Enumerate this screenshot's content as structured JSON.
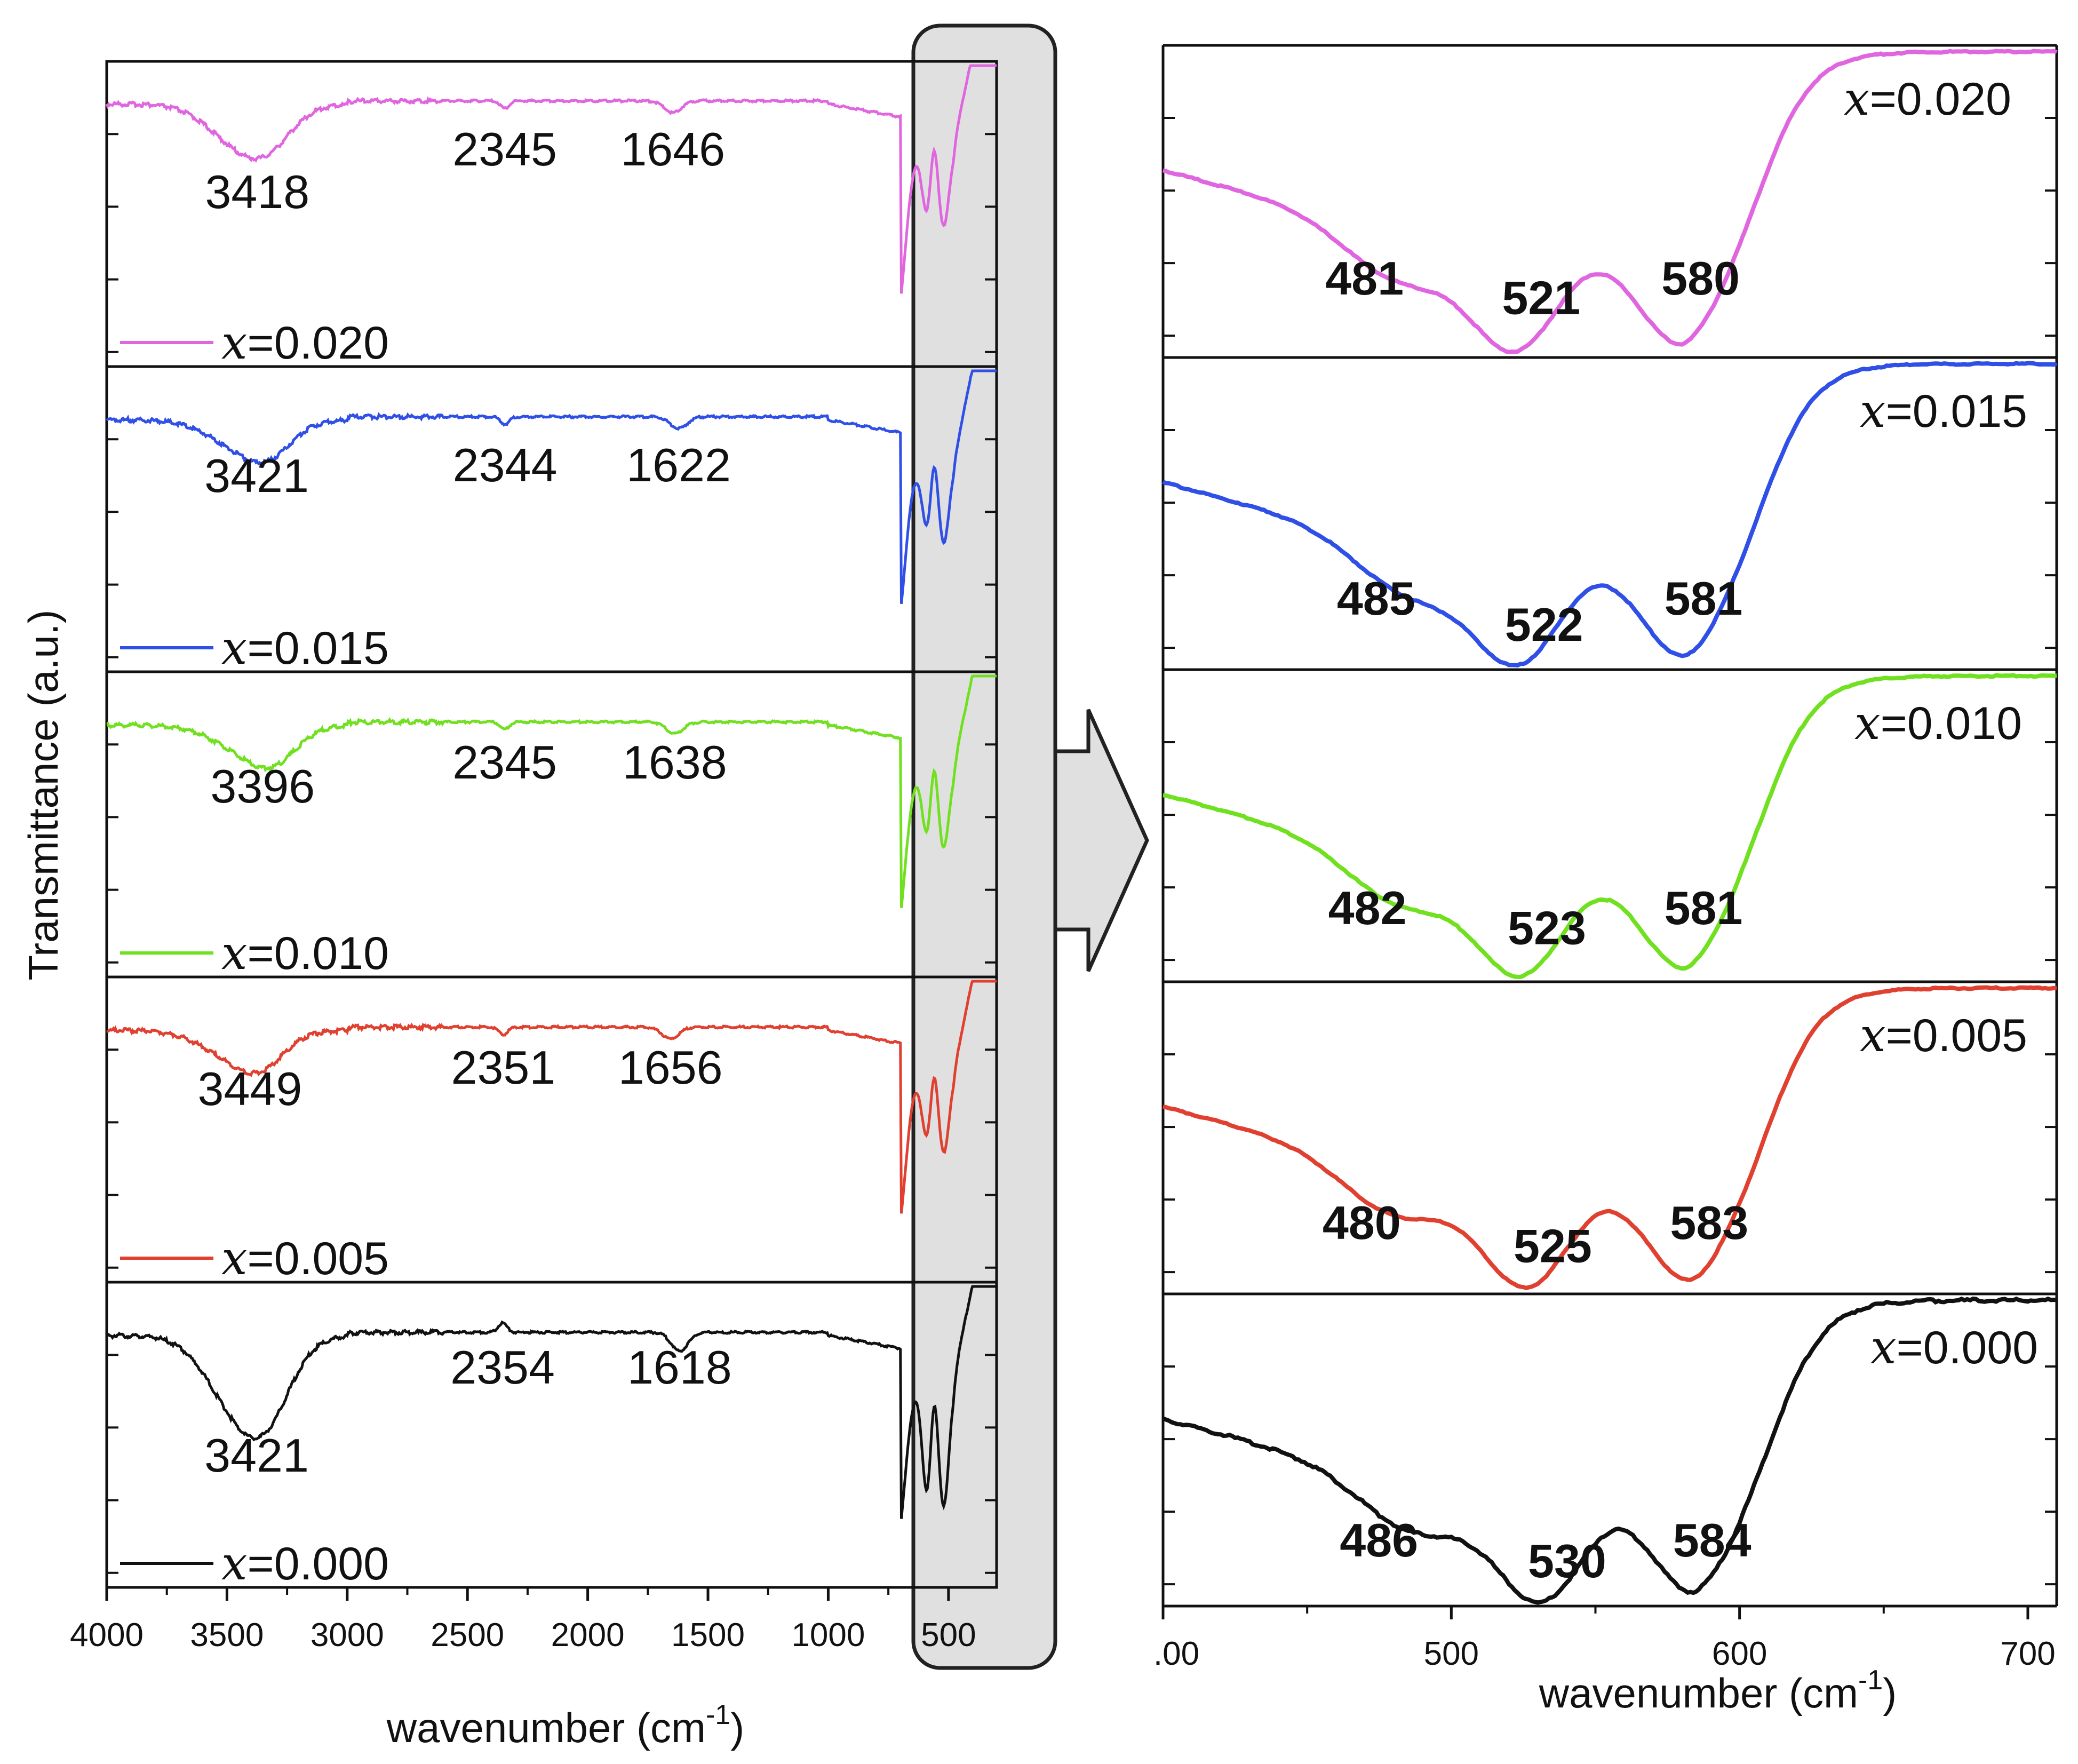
{
  "chart_data": [
    {
      "type": "line",
      "panel": "full spectrum",
      "xlabel": "wavenumber (cm",
      "xlabel_sup": "-1",
      "xlabel_close": ")",
      "ylabel": "Transmittance (a.u.)",
      "xlim": [
        4000,
        300
      ],
      "xticks": [
        "4000",
        "3500",
        "3000",
        "2500",
        "2000",
        "1500",
        "1000",
        "500"
      ],
      "highlight_region": [
        700,
        300
      ],
      "series": [
        {
          "name": "x=0.020",
          "legend_var": "x",
          "legend_value": "=0.020",
          "color": "#e066e0",
          "peaks": [
            {
              "x": 3418,
              "label": "3418"
            },
            {
              "x": 2345,
              "label": "2345"
            },
            {
              "x": 1646,
              "label": "1646"
            }
          ]
        },
        {
          "name": "x=0.015",
          "legend_var": "x",
          "legend_value": "=0.015",
          "color": "#2f4fe6",
          "peaks": [
            {
              "x": 3421,
              "label": "3421"
            },
            {
              "x": 2344,
              "label": "2344"
            },
            {
              "x": 1622,
              "label": "1622"
            }
          ]
        },
        {
          "name": "x=0.010",
          "legend_var": "x",
          "legend_value": "=0.010",
          "color": "#70e020",
          "peaks": [
            {
              "x": 3396,
              "label": "3396"
            },
            {
              "x": 2345,
              "label": "2345"
            },
            {
              "x": 1638,
              "label": "1638"
            }
          ]
        },
        {
          "name": "x=0.005",
          "legend_var": "x",
          "legend_value": "=0.005",
          "color": "#e04030",
          "peaks": [
            {
              "x": 3449,
              "label": "3449"
            },
            {
              "x": 2351,
              "label": "2351"
            },
            {
              "x": 1656,
              "label": "1656"
            }
          ]
        },
        {
          "name": "x=0.000",
          "legend_var": "x",
          "legend_value": "=0.000",
          "color": "#111111",
          "peaks": [
            {
              "x": 3421,
              "label": "3421"
            },
            {
              "x": 2354,
              "label": "2354"
            },
            {
              "x": 1618,
              "label": "1618"
            }
          ]
        }
      ]
    },
    {
      "type": "line",
      "panel": "zoomed 400-710",
      "xlabel": "wavenumber (cm",
      "xlabel_sup": "-1",
      "xlabel_close": ")",
      "xlim": [
        400,
        710
      ],
      "xticks": [
        ".00",
        "500",
        "600",
        "700"
      ],
      "series": [
        {
          "name": "x=0.020",
          "legend_var": "x",
          "legend_value": "=0.020",
          "color": "#e066e0",
          "peaks": [
            {
              "x": 481,
              "label": "481"
            },
            {
              "x": 521,
              "label": "521"
            },
            {
              "x": 580,
              "label": "580"
            }
          ]
        },
        {
          "name": "x=0.015",
          "legend_var": "x",
          "legend_value": "=0.015",
          "color": "#2f4fe6",
          "peaks": [
            {
              "x": 485,
              "label": "485"
            },
            {
              "x": 522,
              "label": "522"
            },
            {
              "x": 581,
              "label": "581"
            }
          ]
        },
        {
          "name": "x=0.010",
          "legend_var": "x",
          "legend_value": "=0.010",
          "color": "#70e020",
          "peaks": [
            {
              "x": 482,
              "label": "482"
            },
            {
              "x": 523,
              "label": "523"
            },
            {
              "x": 581,
              "label": "581"
            }
          ]
        },
        {
          "name": "x=0.005",
          "legend_var": "x",
          "legend_value": "=0.005",
          "color": "#e04030",
          "peaks": [
            {
              "x": 480,
              "label": "480"
            },
            {
              "x": 525,
              "label": "525"
            },
            {
              "x": 583,
              "label": "583"
            }
          ]
        },
        {
          "name": "x=0.000",
          "legend_var": "x",
          "legend_value": "=0.000",
          "color": "#111111",
          "peaks": [
            {
              "x": 486,
              "label": "486"
            },
            {
              "x": 530,
              "label": "530"
            },
            {
              "x": 584,
              "label": "584"
            }
          ]
        }
      ]
    }
  ]
}
